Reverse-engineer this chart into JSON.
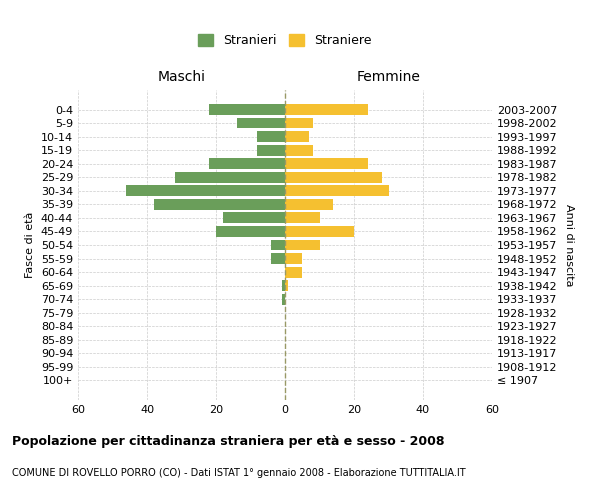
{
  "age_groups": [
    "100+",
    "95-99",
    "90-94",
    "85-89",
    "80-84",
    "75-79",
    "70-74",
    "65-69",
    "60-64",
    "55-59",
    "50-54",
    "45-49",
    "40-44",
    "35-39",
    "30-34",
    "25-29",
    "20-24",
    "15-19",
    "10-14",
    "5-9",
    "0-4"
  ],
  "birth_years": [
    "≤ 1907",
    "1908-1912",
    "1913-1917",
    "1918-1922",
    "1923-1927",
    "1928-1932",
    "1933-1937",
    "1938-1942",
    "1943-1947",
    "1948-1952",
    "1953-1957",
    "1958-1962",
    "1963-1967",
    "1968-1972",
    "1973-1977",
    "1978-1982",
    "1983-1987",
    "1988-1992",
    "1993-1997",
    "1998-2002",
    "2003-2007"
  ],
  "maschi": [
    0,
    0,
    0,
    0,
    0,
    0,
    1,
    1,
    0,
    4,
    4,
    20,
    18,
    38,
    46,
    32,
    22,
    8,
    8,
    14,
    22
  ],
  "femmine": [
    0,
    0,
    0,
    0,
    0,
    0,
    0,
    1,
    5,
    5,
    10,
    20,
    10,
    14,
    30,
    28,
    24,
    8,
    7,
    8,
    24
  ],
  "maschi_color": "#6a9e5a",
  "femmine_color": "#f5c030",
  "grid_color": "#cccccc",
  "dashed_line_color": "#999966",
  "xlim": [
    -60,
    60
  ],
  "xticks": [
    -60,
    -40,
    -20,
    0,
    20,
    40,
    60
  ],
  "xticklabels": [
    "60",
    "40",
    "20",
    "0",
    "20",
    "40",
    "60"
  ],
  "title": "Popolazione per cittadinanza straniera per età e sesso - 2008",
  "subtitle": "COMUNE DI ROVELLO PORRO (CO) - Dati ISTAT 1° gennaio 2008 - Elaborazione TUTTITALIA.IT",
  "ylabel_left": "Fasce di età",
  "ylabel_right": "Anni di nascita",
  "legend_stranieri": "Stranieri",
  "legend_straniere": "Straniere",
  "maschi_label": "Maschi",
  "femmine_label": "Femmine",
  "background_color": "#ffffff",
  "bar_height": 0.8
}
